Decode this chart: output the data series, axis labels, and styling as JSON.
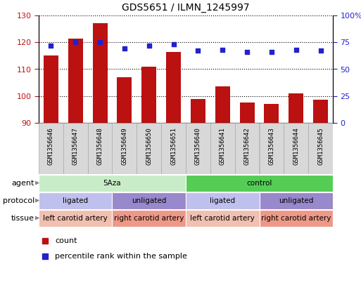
{
  "title": "GDS5651 / ILMN_1245997",
  "samples": [
    "GSM1356646",
    "GSM1356647",
    "GSM1356648",
    "GSM1356649",
    "GSM1356650",
    "GSM1356651",
    "GSM1356640",
    "GSM1356641",
    "GSM1356642",
    "GSM1356643",
    "GSM1356644",
    "GSM1356645"
  ],
  "counts": [
    115.0,
    121.5,
    127.0,
    107.0,
    111.0,
    116.5,
    99.0,
    103.5,
    97.5,
    97.0,
    101.0,
    98.5
  ],
  "percentiles": [
    72,
    75,
    75,
    69,
    72,
    73,
    67,
    68,
    66,
    66,
    68,
    67
  ],
  "ylim_left": [
    90,
    130
  ],
  "ylim_right": [
    0,
    100
  ],
  "yticks_left": [
    90,
    100,
    110,
    120,
    130
  ],
  "yticks_right": [
    0,
    25,
    50,
    75,
    100
  ],
  "bar_color": "#bb1111",
  "dot_color": "#2222cc",
  "agent_groups": [
    {
      "label": "5Aza",
      "start": 0,
      "end": 6,
      "color": "#c8ecc8"
    },
    {
      "label": "control",
      "start": 6,
      "end": 12,
      "color": "#55cc55"
    }
  ],
  "protocol_groups": [
    {
      "label": "ligated",
      "start": 0,
      "end": 3,
      "color": "#c0c0ee"
    },
    {
      "label": "unligated",
      "start": 3,
      "end": 6,
      "color": "#9988cc"
    },
    {
      "label": "ligated",
      "start": 6,
      "end": 9,
      "color": "#c0c0ee"
    },
    {
      "label": "unligated",
      "start": 9,
      "end": 12,
      "color": "#9988cc"
    }
  ],
  "tissue_groups": [
    {
      "label": "left carotid artery",
      "start": 0,
      "end": 3,
      "color": "#f0c0b0"
    },
    {
      "label": "right carotid artery",
      "start": 3,
      "end": 6,
      "color": "#ee9988"
    },
    {
      "label": "left carotid artery",
      "start": 6,
      "end": 9,
      "color": "#f0c0b0"
    },
    {
      "label": "right carotid artery",
      "start": 9,
      "end": 12,
      "color": "#ee9988"
    }
  ],
  "row_labels": [
    "agent",
    "protocol",
    "tissue"
  ],
  "legend_count_label": "count",
  "legend_pct_label": "percentile rank within the sample",
  "sample_cell_color": "#d8d8d8",
  "sample_cell_edge": "#aaaaaa"
}
